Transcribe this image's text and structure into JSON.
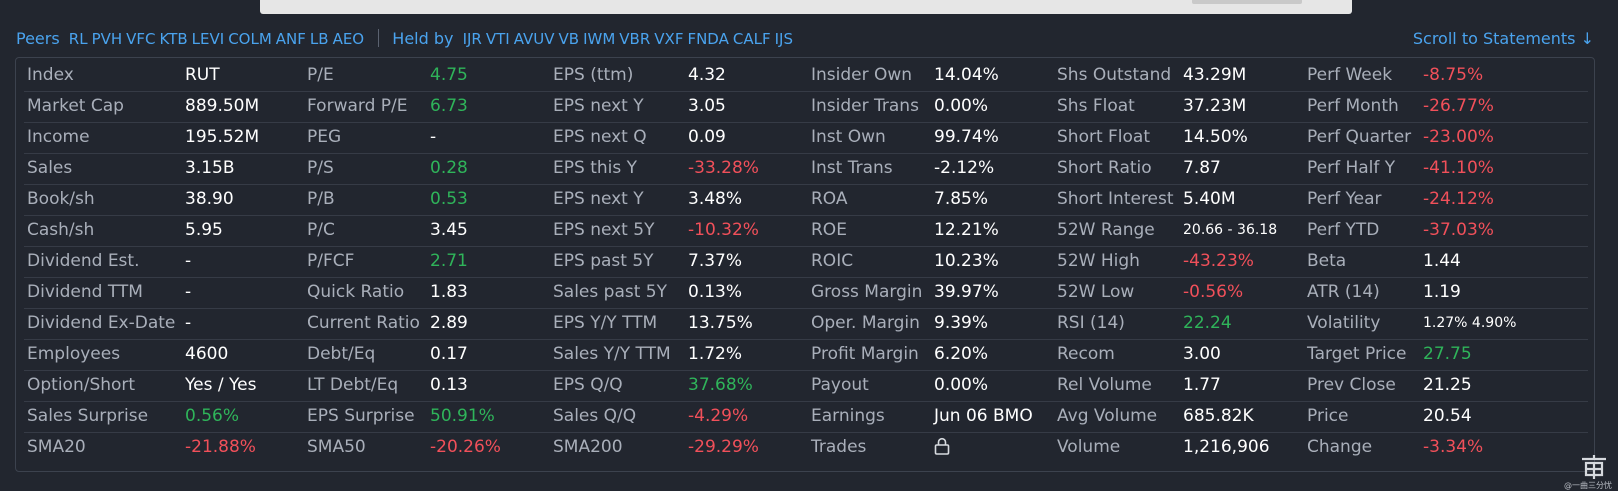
{
  "peers": {
    "label": "Peers",
    "tickers": [
      "RL",
      "PVH",
      "VFC",
      "KTB",
      "LEVI",
      "COLM",
      "ANF",
      "LB",
      "AEO"
    ]
  },
  "held_by": {
    "label": "Held by",
    "tickers": [
      "IJR",
      "VTI",
      "AVUV",
      "VB",
      "IWM",
      "VBR",
      "VXF",
      "FNDA",
      "CALF",
      "IJS"
    ]
  },
  "scroll_link": "Scroll to Statements ↓",
  "colors": {
    "positive": "#2fb45a",
    "negative": "#f1505a",
    "link": "#4aa3ee"
  },
  "watermark_text": "@一曲三分忧",
  "snapshot": {
    "columns": [
      [
        {
          "label": "Index",
          "value": "RUT",
          "tone": "neutral"
        },
        {
          "label": "Market Cap",
          "value": "889.50M",
          "tone": "neutral"
        },
        {
          "label": "Income",
          "value": "195.52M",
          "tone": "neutral"
        },
        {
          "label": "Sales",
          "value": "3.15B",
          "tone": "neutral"
        },
        {
          "label": "Book/sh",
          "value": "38.90",
          "tone": "neutral"
        },
        {
          "label": "Cash/sh",
          "value": "5.95",
          "tone": "neutral"
        },
        {
          "label": "Dividend Est.",
          "value": "-",
          "tone": "neutral"
        },
        {
          "label": "Dividend TTM",
          "value": "-",
          "tone": "neutral"
        },
        {
          "label": "Dividend Ex-Date",
          "value": "-",
          "tone": "neutral"
        },
        {
          "label": "Employees",
          "value": "4600",
          "tone": "neutral"
        },
        {
          "label": "Option/Short",
          "value": "Yes / Yes",
          "tone": "neutral"
        },
        {
          "label": "Sales Surprise",
          "value": "0.56%",
          "tone": "pos"
        },
        {
          "label": "SMA20",
          "value": "-21.88%",
          "tone": "neg"
        }
      ],
      [
        {
          "label": "P/E",
          "value": "4.75",
          "tone": "pos"
        },
        {
          "label": "Forward P/E",
          "value": "6.73",
          "tone": "pos"
        },
        {
          "label": "PEG",
          "value": "-",
          "tone": "neutral"
        },
        {
          "label": "P/S",
          "value": "0.28",
          "tone": "pos"
        },
        {
          "label": "P/B",
          "value": "0.53",
          "tone": "pos"
        },
        {
          "label": "P/C",
          "value": "3.45",
          "tone": "neutral"
        },
        {
          "label": "P/FCF",
          "value": "2.71",
          "tone": "pos"
        },
        {
          "label": "Quick Ratio",
          "value": "1.83",
          "tone": "neutral"
        },
        {
          "label": "Current Ratio",
          "value": "2.89",
          "tone": "neutral"
        },
        {
          "label": "Debt/Eq",
          "value": "0.17",
          "tone": "neutral"
        },
        {
          "label": "LT Debt/Eq",
          "value": "0.13",
          "tone": "neutral"
        },
        {
          "label": "EPS Surprise",
          "value": "50.91%",
          "tone": "pos"
        },
        {
          "label": "SMA50",
          "value": "-20.26%",
          "tone": "neg"
        }
      ],
      [
        {
          "label": "EPS (ttm)",
          "value": "4.32",
          "tone": "neutral"
        },
        {
          "label": "EPS next Y",
          "value": "3.05",
          "tone": "neutral"
        },
        {
          "label": "EPS next Q",
          "value": "0.09",
          "tone": "neutral"
        },
        {
          "label": "EPS this Y",
          "value": "-33.28%",
          "tone": "neg"
        },
        {
          "label": "EPS next Y",
          "value": "3.48%",
          "tone": "neutral"
        },
        {
          "label": "EPS next 5Y",
          "value": "-10.32%",
          "tone": "neg"
        },
        {
          "label": "EPS past 5Y",
          "value": "7.37%",
          "tone": "neutral"
        },
        {
          "label": "Sales past 5Y",
          "value": "0.13%",
          "tone": "neutral"
        },
        {
          "label": "EPS Y/Y TTM",
          "value": "13.75%",
          "tone": "neutral"
        },
        {
          "label": "Sales Y/Y TTM",
          "value": "1.72%",
          "tone": "neutral"
        },
        {
          "label": "EPS Q/Q",
          "value": "37.68%",
          "tone": "pos"
        },
        {
          "label": "Sales Q/Q",
          "value": "-4.29%",
          "tone": "neg"
        },
        {
          "label": "SMA200",
          "value": "-29.29%",
          "tone": "neg"
        }
      ],
      [
        {
          "label": "Insider Own",
          "value": "14.04%",
          "tone": "neutral"
        },
        {
          "label": "Insider Trans",
          "value": "0.00%",
          "tone": "neutral"
        },
        {
          "label": "Inst Own",
          "value": "99.74%",
          "tone": "neutral"
        },
        {
          "label": "Inst Trans",
          "value": "-2.12%",
          "tone": "neutral"
        },
        {
          "label": "ROA",
          "value": "7.85%",
          "tone": "neutral"
        },
        {
          "label": "ROE",
          "value": "12.21%",
          "tone": "neutral"
        },
        {
          "label": "ROIC",
          "value": "10.23%",
          "tone": "neutral"
        },
        {
          "label": "Gross Margin",
          "value": "39.97%",
          "tone": "neutral"
        },
        {
          "label": "Oper. Margin",
          "value": "9.39%",
          "tone": "neutral"
        },
        {
          "label": "Profit Margin",
          "value": "6.20%",
          "tone": "neutral"
        },
        {
          "label": "Payout",
          "value": "0.00%",
          "tone": "neutral"
        },
        {
          "label": "Earnings",
          "value": "Jun 06 BMO",
          "tone": "neutral"
        },
        {
          "label": "Trades",
          "value": "",
          "tone": "lock"
        }
      ],
      [
        {
          "label": "Shs Outstand",
          "value": "43.29M",
          "tone": "neutral"
        },
        {
          "label": "Shs Float",
          "value": "37.23M",
          "tone": "neutral"
        },
        {
          "label": "Short Float",
          "value": "14.50%",
          "tone": "neutral"
        },
        {
          "label": "Short Ratio",
          "value": "7.87",
          "tone": "neutral"
        },
        {
          "label": "Short Interest",
          "value": "5.40M",
          "tone": "neutral"
        },
        {
          "label": "52W Range",
          "value": "20.66 - 36.18",
          "tone": "small"
        },
        {
          "label": "52W High",
          "value": "-43.23%",
          "tone": "neg"
        },
        {
          "label": "52W Low",
          "value": "-0.56%",
          "tone": "neg"
        },
        {
          "label": "RSI (14)",
          "value": "22.24",
          "tone": "pos"
        },
        {
          "label": "Recom",
          "value": "3.00",
          "tone": "neutral"
        },
        {
          "label": "Rel Volume",
          "value": "1.77",
          "tone": "neutral"
        },
        {
          "label": "Avg Volume",
          "value": "685.82K",
          "tone": "neutral"
        },
        {
          "label": "Volume",
          "value": "1,216,906",
          "tone": "neutral"
        }
      ],
      [
        {
          "label": "Perf Week",
          "value": "-8.75%",
          "tone": "neg"
        },
        {
          "label": "Perf Month",
          "value": "-26.77%",
          "tone": "neg"
        },
        {
          "label": "Perf Quarter",
          "value": "-23.00%",
          "tone": "neg"
        },
        {
          "label": "Perf Half Y",
          "value": "-41.10%",
          "tone": "neg"
        },
        {
          "label": "Perf Year",
          "value": "-24.12%",
          "tone": "neg"
        },
        {
          "label": "Perf YTD",
          "value": "-37.03%",
          "tone": "neg"
        },
        {
          "label": "Beta",
          "value": "1.44",
          "tone": "neutral"
        },
        {
          "label": "ATR (14)",
          "value": "1.19",
          "tone": "neutral"
        },
        {
          "label": "Volatility",
          "value": "1.27% 4.90%",
          "tone": "small"
        },
        {
          "label": "Target Price",
          "value": "27.75",
          "tone": "pos"
        },
        {
          "label": "Prev Close",
          "value": "21.25",
          "tone": "neutral"
        },
        {
          "label": "Price",
          "value": "20.54",
          "tone": "neutral"
        },
        {
          "label": "Change",
          "value": "-3.34%",
          "tone": "neg"
        }
      ]
    ]
  }
}
